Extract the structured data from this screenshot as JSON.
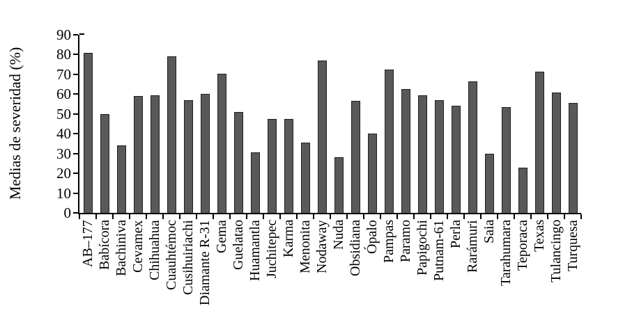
{
  "chart_data": {
    "type": "bar",
    "title": "",
    "xlabel": "",
    "ylabel": "Medias de severidad (%)",
    "ylim": [
      0,
      90
    ],
    "yticks": [
      90,
      80,
      70,
      60,
      50,
      40,
      30,
      20,
      10,
      0
    ],
    "grid": false,
    "legend_position": "none",
    "bar_color": "#595959",
    "bar_border_color": "#1f1f1f",
    "axis_color": "#000000",
    "categories": [
      "AB–177",
      "Babícora",
      "Bachiniva",
      "Cevamex",
      "Chihuahua",
      "Cuauhtémoc",
      "Cusihuiriachi",
      "Diamante R-31",
      "Gema",
      "Guelatao",
      "Huamantla",
      "Juchitepec",
      "Karma",
      "Menonita",
      "Nodaway",
      "Nuda",
      "Obsidiana",
      "Ópalo",
      "Pampas",
      "Paramo",
      "Papigochi",
      "Putnam-61",
      "Perla",
      "Rarámuri",
      "Saia",
      "Tarahumara",
      "Teporaca",
      "Texas",
      "Tulancingo",
      "Turquesa"
    ],
    "values": [
      81,
      50,
      34,
      59,
      59.5,
      79,
      57,
      60,
      70.5,
      51,
      30.5,
      47.5,
      47.5,
      35.5,
      77,
      28,
      56.5,
      40,
      72.5,
      62.5,
      59.5,
      57,
      54,
      66.5,
      30,
      53.5,
      23,
      71.5,
      61,
      55.5
    ]
  }
}
